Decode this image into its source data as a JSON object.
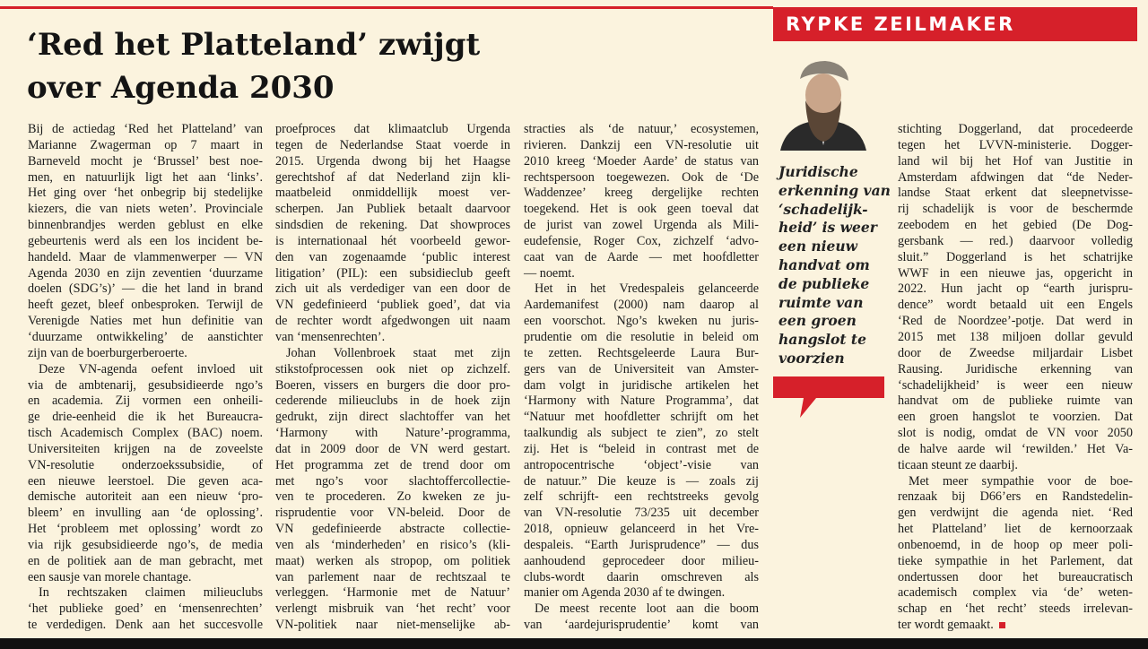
{
  "author": "RYPKE ZEILMAKER",
  "title": [
    "‘Red het Platteland’ zwijgt",
    "over Agenda 2030"
  ],
  "quote": [
    "Juridische",
    "erkenning van",
    "‘schadelijk-",
    "heid’ is weer",
    "een nieuw",
    "handvat om",
    "de publieke",
    "ruimte van",
    "een groen",
    "hangslot te",
    "voorzien"
  ],
  "columns": [
    {
      "lines": [
        "Bij de actiedag ‘Red het Platteland’ van",
        "Marianne Zwagerman op 7 maart in",
        "Barneveld mocht je ‘Brussel’ best noe-",
        "men, en natuurlijk ligt het aan ‘links’.",
        "Het ging over ‘het onbegrip bij stedelijke",
        "kiezers, die van niets weten’. Provinciale",
        "binnenbrandjes werden geblust en elke",
        "gebeurtenis werd als een los incident be-",
        "handeld. Maar de vlammenwerper — VN",
        "Agenda 2030 en zijn zeventien ‘duurzame",
        "doelen (SDG’s)’ — die het land in brand",
        "heeft gezet, bleef onbesproken. Terwijl de",
        "Verenigde Naties met hun definitie van",
        "‘duurzame ontwikkeling’ de aanstichter",
        "zijn van de boerburgerberoerte.",
        "Deze VN-agenda oefent invloed uit",
        "via de ambtenarij, gesubsidieerde ngo’s",
        "en academia. Zij vormen een onheili-",
        "ge drie-eenheid die ik het Bureaucra-",
        "tisch Academisch Complex (BAC) noem.",
        "Universiteiten krijgen na de zoveelste",
        "VN-resolutie onderzoekssubsidie, of",
        "een nieuwe leerstoel. Die geven aca-",
        "demische autoriteit aan een nieuw ‘pro-",
        "bleem’ en invulling aan ‘de oplossing’.",
        "Het ‘probleem met oplossing’ wordt zo",
        "via rijk gesubsidieerde ngo’s, de media",
        "en de politiek aan de man gebracht, met",
        "een sausje van morele chantage.",
        "In rechtszaken claimen milieuclubs",
        "‘het publieke goed’ en ‘mensenrechten’",
        "te verdedigen. Denk aan het succesvolle"
      ]
    },
    {
      "lines": [
        "proefproces dat klimaatclub Urgenda",
        "tegen de Nederlandse Staat voerde in",
        "2015. Urgenda dwong bij het Haagse",
        "gerechtshof af dat Nederland zijn kli-",
        "maatbeleid onmiddellijk moest ver-",
        "scherpen. Jan Publiek betaalt daarvoor",
        "sindsdien de rekening. Dat showproces",
        "is internationaal hét voorbeeld gewor-",
        "den van zogenaamde ‘public interest",
        "litigation’ (PIL): een subsidieclub geeft",
        "zich uit als verdediger van een door de",
        "VN gedefinieerd ‘publiek goed’, dat via",
        "de rechter wordt afgedwongen uit naam",
        "van ‘mensenrechten’.",
        "Johan Vollenbroek staat met zijn",
        "stikstofprocessen ook niet op zichzelf.",
        "Boeren, vissers en burgers die door pro-",
        "cederende milieuclubs in de hoek zijn",
        "gedrukt, zijn direct slachtoffer van het",
        "‘Harmony with Nature’-programma,",
        "dat in 2009 door de VN werd gestart.",
        "Het programma zet de trend door om",
        "met ngo’s voor slachtoffercollectie-",
        "ven te procederen. Zo kweken ze ju-",
        "risprudentie voor VN-beleid. Door de",
        "VN gedefinieerde abstracte collectie-",
        "ven als ‘minderheden’ en risico’s (kli-",
        "maat) werken als stropop, om politiek",
        "van parlement naar de rechtszaal te",
        "verleggen. ‘Harmonie met de Natuur’",
        "verlengt misbruik van ‘het recht’ voor",
        "VN-politiek naar niet-menselijke ab-"
      ]
    },
    {
      "lines": [
        "stracties als ‘de natuur,’ ecosystemen,",
        "rivieren. Dankzij een VN-resolutie uit",
        "2010 kreeg ‘Moeder Aarde’ de status van",
        "rechtspersoon toegewezen. Ook de ‘De",
        "Waddenzee’ kreeg dergelijke rechten",
        "toegekend. Het is ook geen toeval dat",
        "de jurist van zowel Urgenda als Mili-",
        "eudefensie, Roger Cox, zichzelf ‘advo-",
        "caat van de Aarde — met hoofdletter",
        "— noemt.",
        "Het in het Vredespaleis gelanceerde",
        "Aardemanifest (2000) nam daarop al",
        "een voorschot. Ngo’s kweken nu juris-",
        "prudentie om die resolutie in beleid om",
        "te zetten. Rechtsgeleerde Laura Bur-",
        "gers van de Universiteit van Amster-",
        "dam volgt in juridische artikelen het",
        "‘Harmony with Nature Programma’, dat",
        "“Natuur met hoofdletter schrijft om het",
        "taalkundig als subject te zien”, zo stelt",
        "zij. Het is “beleid in contrast met de",
        "antropocentrische ‘object’-visie van",
        "de natuur.” Die keuze is — zoals zij",
        "zelf schrijft- een rechtstreeks gevolg",
        "van VN-resolutie 73/235 uit december",
        "2018, opnieuw gelanceerd in het Vre-",
        "despaleis. “Earth Jurisprudence” — dus",
        "aanhoudend geprocedeer door milieu-",
        "clubs-wordt daarin omschreven als",
        "manier om Agenda 2030 af te dwingen.",
        "De meest recente loot aan die boom",
        "van ‘aardejurisprudentie’ komt van"
      ]
    },
    {
      "lines": [
        "stichting Doggerland, dat procedeerde",
        "tegen het LVVN-ministerie. Dogger-",
        "land wil bij het Hof van Justitie in",
        "Amsterdam afdwingen dat “de Neder-",
        "landse Staat erkent dat sleepnetvisse-",
        "rij schadelijk is voor de beschermde",
        "zeebodem en het gebied (De Dog-",
        "gersbank — red.) daarvoor volledig",
        "sluit.” Doggerland is het schatrijke",
        "WWF in een nieuwe jas, opgericht in",
        "2022. Hun jacht op “earth jurispru-",
        "dence” wordt betaald uit een Engels",
        "‘Red de Noordzee’-potje. Dat werd in",
        "2015 met 138 miljoen dollar gevuld",
        "door de Zweedse miljardair Lisbet",
        "Rausing. Juridische erkenning van",
        "‘schadelijkheid’ is weer een nieuw",
        "handvat om de publieke ruimte van",
        "een groen hangslot te voorzien. Dat",
        "slot is nodig, omdat de VN voor 2050",
        "de halve aarde wil ‘rewilden.’ Het Va-",
        "ticaan steunt ze daarbij.",
        "Met meer sympathie voor de boe-",
        "renzaak bij D66’ers en Randstedelin-",
        "gen verdwijnt die agenda niet. ‘Red",
        "het Platteland’ liet de kernoorzaak",
        "onbenoemd, in de hoop op meer poli-",
        "tieke sympathie in het Parlement, dat",
        "ondertussen door het bureaucratisch",
        "academisch complex via ‘de’ weten-",
        "schap en ‘het recht’ steeds irrelevan-",
        "ter wordt gemaakt."
      ]
    }
  ]
}
